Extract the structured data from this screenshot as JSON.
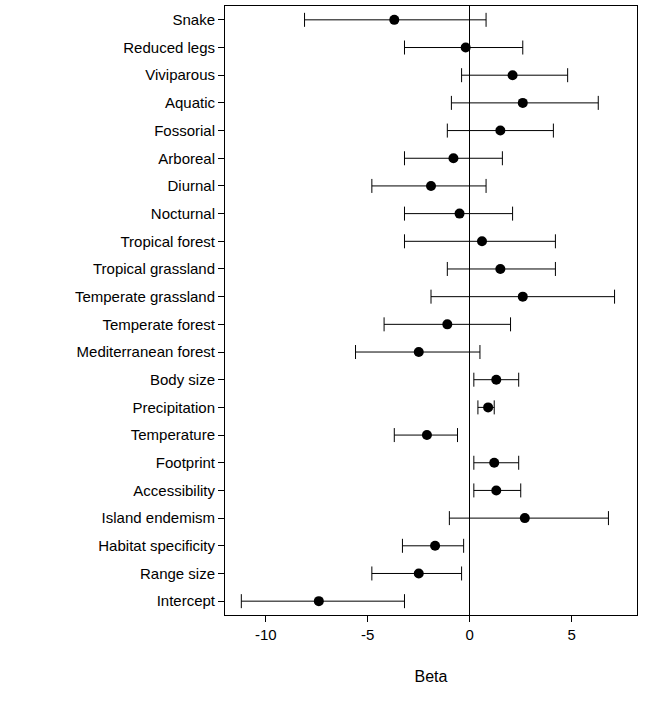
{
  "chart_data": {
    "type": "forest",
    "orientation": "horizontal",
    "xlabel": "Beta",
    "categories": [
      "Snake",
      "Reduced legs",
      "Viviparous",
      "Aquatic",
      "Fossorial",
      "Arboreal",
      "Diurnal",
      "Nocturnal",
      "Tropical forest",
      "Tropical grassland",
      "Temperate grassland",
      "Temperate forest",
      "Mediterranean forest",
      "Body size",
      "Precipitation",
      "Temperature",
      "Footprint",
      "Accessibility",
      "Island endemism",
      "Habitat specificity",
      "Range size",
      "Intercept"
    ],
    "values": [
      -3.7,
      -0.2,
      2.1,
      2.6,
      1.5,
      -0.8,
      -1.9,
      -0.5,
      0.6,
      1.5,
      2.6,
      -1.1,
      -2.5,
      1.3,
      0.9,
      -2.1,
      1.2,
      1.3,
      2.7,
      -1.7,
      -2.5,
      -7.4
    ],
    "lower": [
      -8.1,
      -3.2,
      -0.4,
      -0.9,
      -1.1,
      -3.2,
      -4.8,
      -3.2,
      -3.2,
      -1.1,
      -1.9,
      -4.2,
      -5.6,
      0.2,
      0.4,
      -3.7,
      0.2,
      0.2,
      -1.0,
      -3.3,
      -4.8,
      -11.2
    ],
    "upper": [
      0.8,
      2.6,
      4.8,
      6.3,
      4.1,
      1.6,
      0.8,
      2.1,
      4.2,
      4.2,
      7.1,
      2.0,
      0.5,
      2.4,
      1.2,
      -0.6,
      2.4,
      2.5,
      6.8,
      -0.3,
      -0.4,
      -3.2
    ],
    "xlim": [
      -12,
      8.2
    ],
    "xticks": [
      -10,
      -5,
      0,
      5
    ],
    "color": "#000000",
    "marker": "circle",
    "grid": false
  }
}
